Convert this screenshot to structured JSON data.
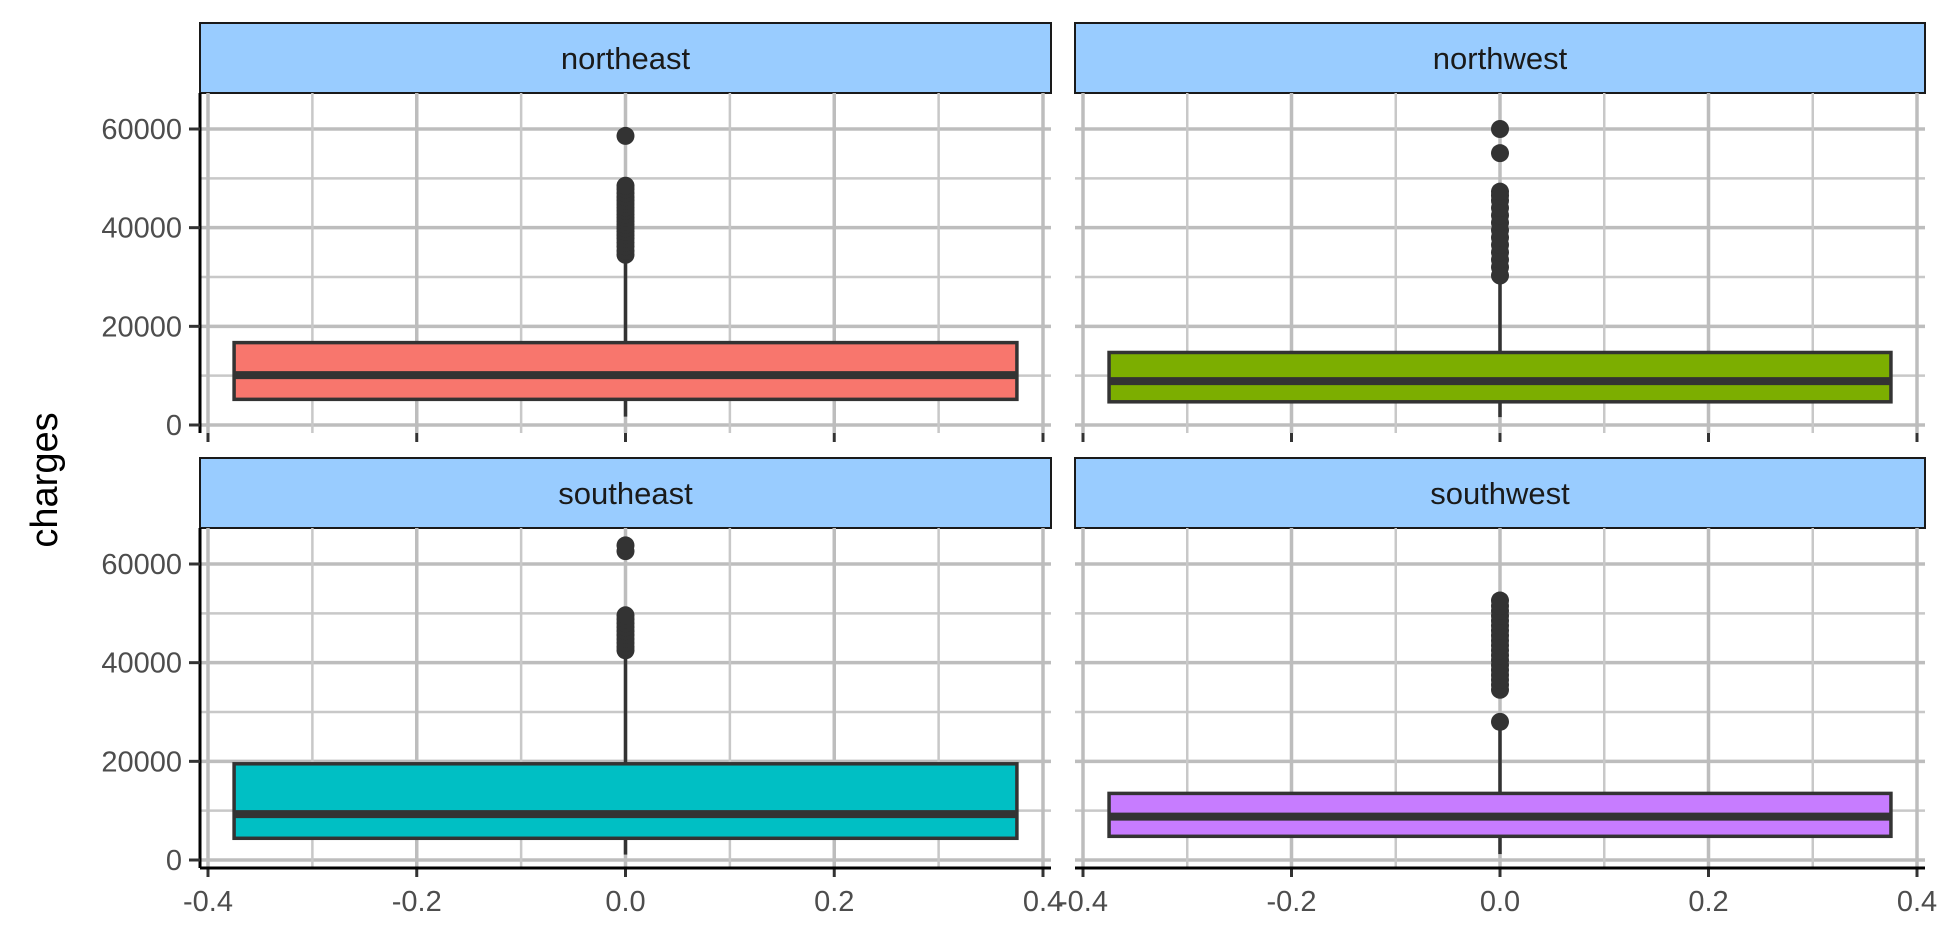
{
  "chart_data": {
    "type": "boxplot",
    "facet_by": "region",
    "ylabel": "charges",
    "xlabel": "",
    "xlim": [
      -0.4,
      0.4
    ],
    "ylim": [
      0,
      63770
    ],
    "x_ticks": [
      -0.4,
      -0.2,
      0.0,
      0.2,
      0.4
    ],
    "x_tick_labels": [
      "-0.4",
      "-0.2",
      "0.0",
      "0.2",
      "0.4"
    ],
    "y_ticks": [
      0,
      20000,
      40000,
      60000
    ],
    "y_tick_labels": [
      "0",
      "20000",
      "40000",
      "60000"
    ],
    "grid": true,
    "legend": "none",
    "panels": [
      {
        "name": "northeast",
        "color": "#F8766D",
        "box_width": [
          -0.375,
          0.375
        ],
        "lower_whisker": 1700,
        "q1": 5200,
        "median": 10100,
        "q3": 16700,
        "upper_whisker": 33700,
        "outliers": [
          34500,
          35300,
          36200,
          37000,
          37800,
          38500,
          39200,
          39900,
          40600,
          41300,
          42000,
          42700,
          43400,
          44100,
          44800,
          45500,
          46200,
          47000,
          47800,
          48500,
          58600
        ]
      },
      {
        "name": "northwest",
        "color": "#7CAE00",
        "box_width": [
          -0.375,
          0.375
        ],
        "lower_whisker": 1600,
        "q1": 4700,
        "median": 8900,
        "q3": 14700,
        "upper_whisker": 29600,
        "outliers": [
          30300,
          32000,
          33500,
          35000,
          36500,
          38000,
          39500,
          41000,
          42500,
          44000,
          45500,
          46500,
          47300,
          55100,
          60000
        ]
      },
      {
        "name": "southeast",
        "color": "#00BFC4",
        "box_width": [
          -0.375,
          0.375
        ],
        "lower_whisker": 1100,
        "q1": 4400,
        "median": 9300,
        "q3": 19500,
        "upper_whisker": 42000,
        "outliers": [
          42500,
          43200,
          44000,
          44800,
          45600,
          46400,
          47200,
          48000,
          48800,
          49600,
          62600,
          63770
        ]
      },
      {
        "name": "southwest",
        "color": "#C77CFF",
        "box_width": [
          -0.375,
          0.375
        ],
        "lower_whisker": 1200,
        "q1": 4800,
        "median": 8800,
        "q3": 13500,
        "upper_whisker": 27400,
        "outliers": [
          28000,
          34500,
          35500,
          36500,
          37500,
          38500,
          39500,
          40500,
          41500,
          42500,
          43500,
          44500,
          45500,
          46500,
          47500,
          48500,
          49500,
          50500,
          51500,
          52600
        ]
      }
    ]
  }
}
